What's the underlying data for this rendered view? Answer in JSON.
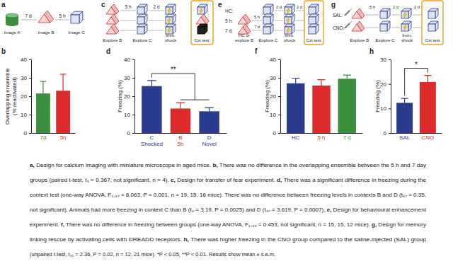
{
  "chart_data": [
    {
      "type": "bar",
      "title": "b",
      "y_label": [
        "Overlapping ensemble",
        "(% reactivated)"
      ],
      "categories": [
        "7d",
        "5h"
      ],
      "values": [
        21.5,
        23
      ],
      "errors": [
        6.5,
        9
      ],
      "colors": [
        "#3b8e3e",
        "#dd2a2a"
      ],
      "ylim": [
        0,
        40
      ],
      "yticks": [
        0,
        10,
        20,
        30,
        40
      ]
    },
    {
      "type": "bar",
      "title": "d",
      "y_label": "Freezing (%)",
      "categories": [
        "C\nShocked",
        "B\n5h",
        "D\nNovel"
      ],
      "values": [
        25.5,
        13.3,
        11.8
      ],
      "errors": [
        3,
        3.2,
        2
      ],
      "colors": [
        "#2a3a8c",
        "#dd2a2a",
        "#2a3a8c"
      ],
      "ylim": [
        0,
        40
      ],
      "yticks": [
        0,
        10,
        20,
        30,
        40
      ],
      "annotations": [
        {
          "text": "**"
        }
      ]
    },
    {
      "type": "bar",
      "title": "f",
      "y_label": "Freezing (%)",
      "categories": [
        "HC",
        "5 h",
        "7 d"
      ],
      "values": [
        27,
        25.8,
        29.5
      ],
      "errors": [
        2.8,
        3.2,
        2
      ],
      "colors": [
        "#2a3a8c",
        "#dd2a2a",
        "#3b8e3e"
      ],
      "ylim": [
        0,
        40
      ],
      "yticks": [
        0,
        10,
        20,
        30,
        40
      ]
    },
    {
      "type": "bar",
      "title": "h",
      "y_label": "Freezing (%)",
      "categories": [
        "SAL",
        "CNO"
      ],
      "values": [
        12.3,
        20.8
      ],
      "errors": [
        1.8,
        2.7
      ],
      "colors": [
        "#2a3a8c",
        "#dd2a2a"
      ],
      "ylim": [
        0,
        30
      ],
      "yticks": [
        0,
        10,
        20,
        30
      ],
      "annotations": [
        {
          "text": "*"
        }
      ]
    }
  ],
  "diagrams": {
    "a": {
      "label": "a",
      "intervals": [
        "7 d",
        "5 h"
      ],
      "steps": [
        "Image A",
        "Image B",
        "Image C"
      ]
    },
    "c": {
      "label": "c",
      "intervals": [
        "5 h",
        "2 d"
      ],
      "steps": [
        "Explore B",
        "Explore C",
        "Imm. shock",
        "Cxt test"
      ]
    },
    "e": {
      "label": "e",
      "rows": [
        "HC:",
        "5 h:",
        "7 d:"
      ],
      "row_intervals": [
        null,
        "5 h",
        "7 d"
      ],
      "intervals": [
        "2 d",
        "2 d"
      ],
      "steps": [
        "HC or explore B",
        "Explore C",
        "Imm. shock",
        "Cxt test"
      ]
    },
    "g": {
      "label": "g",
      "rows": [
        "SAL:",
        "CNO:"
      ],
      "intervals": [
        "5 h",
        "2 d",
        "2 d"
      ],
      "steps": [
        "Explore B",
        "Explore C",
        "Imm. shock",
        "Cxt test"
      ]
    }
  },
  "caption": [
    "a, Design for calcium imaging with miniature microscope in aged mice. b, There was no difference in the overlapping ensemble between the 5 h and 7 day",
    "groups (paired t-test, t₃ = 0.367, not significant, n = 4). c, Design for transfer of fear experiment. d, There was a significant difference in freezing during the",
    "context test (one-way ANOVA, F₂,₄₇ = 8.063, P = 0.001, n = 19, 15, 16 mice). There was no difference between freezing levels in contexts B and D (t₄₇ = 0.35,",
    "not significant). Animals had more freezing in context C than B (t₄ = 3.19, P = 0.0025) and D (t₄₇ = 3.619, P = 0.0007). e, Design for behavioural enhancement",
    "experiment. f, There was no difference in freezing between groups (one-way ANOVA, F₂,₃₉ = 0.453, not significant, n = 15, 15, 12 mice). g, Design for memory",
    "linking rescue by activating cells with DREADD receptors. h, There was higher freezing in the CNO group compared to the saline-injected (SAL) group",
    "(unpaired t-test, t₃₁ = 2.36, P = 0.02, n = 12, 21 mice). *P < 0.05, **P < 0.01. Results show mean ± s.e.m."
  ]
}
